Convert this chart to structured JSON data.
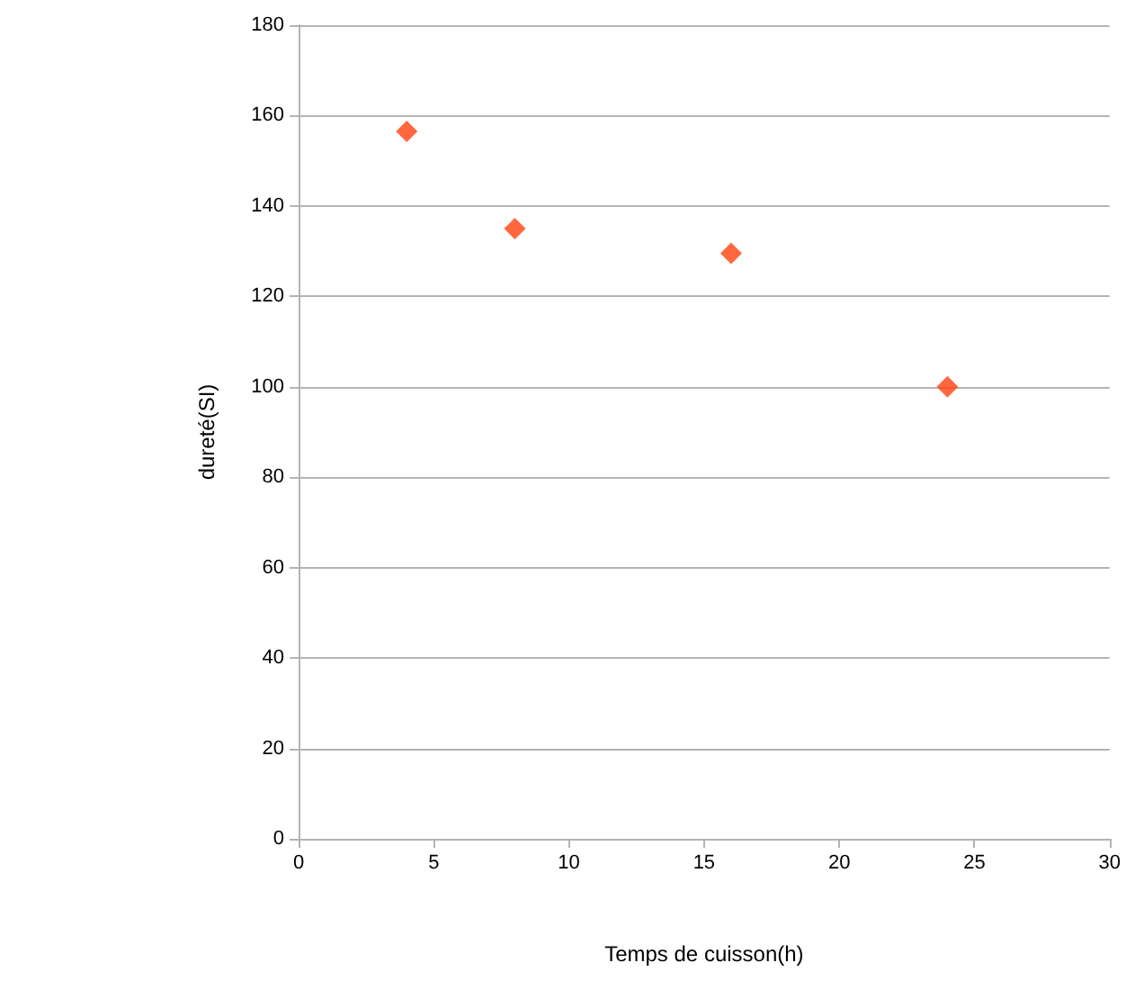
{
  "chart_data": {
    "type": "scatter",
    "xlabel": "Temps de cuisson(h)",
    "ylabel": "dureté(SI)",
    "x": [
      4,
      8,
      16,
      24
    ],
    "series": [
      {
        "color": "#ff420e",
        "values": [
          156.5,
          135,
          129.5,
          100
        ]
      }
    ],
    "xlim": [
      0,
      30
    ],
    "xticks": [
      0,
      5,
      10,
      15,
      20,
      25,
      30
    ],
    "ylim": [
      0,
      180
    ],
    "yticks": [
      0,
      20,
      40,
      60,
      80,
      100,
      120,
      140,
      160,
      180
    ],
    "grid": "y",
    "marker": "diamond"
  }
}
